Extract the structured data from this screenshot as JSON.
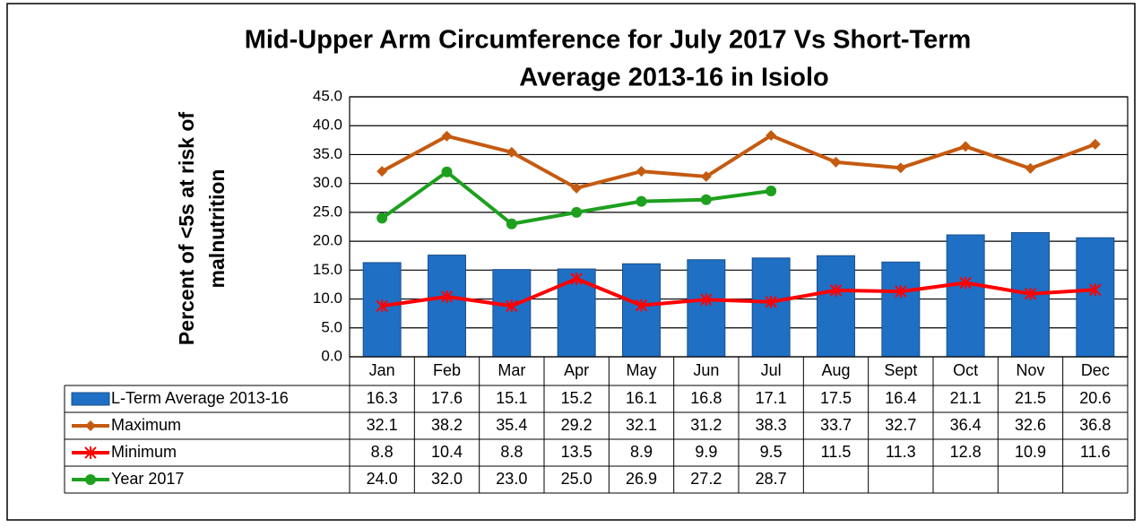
{
  "chart_data": {
    "type": "combo",
    "title": [
      "Mid-Upper Arm Circumference for July 2017 Vs Short-Term",
      "Average 2013-16  in Isiolo"
    ],
    "y_label": [
      "Percent of <5s at risk of",
      "malnutrition"
    ],
    "categories": [
      "Jan",
      "Feb",
      "Mar",
      "Apr",
      "May",
      "Jun",
      "Jul",
      "Aug",
      "Sept",
      "Oct",
      "Nov",
      "Dec"
    ],
    "ylim": [
      0,
      45
    ],
    "yticks": [
      {
        "value": 0,
        "label": "0.0"
      },
      {
        "value": 5,
        "label": "5.0"
      },
      {
        "value": 10,
        "label": "10.0"
      },
      {
        "value": 15,
        "label": "15.0"
      },
      {
        "value": 20,
        "label": "20.0"
      },
      {
        "value": 25,
        "label": "25.0"
      },
      {
        "value": 30,
        "label": "30.0"
      },
      {
        "value": 35,
        "label": "35.0"
      },
      {
        "value": 40,
        "label": "40.0"
      },
      {
        "value": 45,
        "label": "45.0"
      }
    ],
    "grid": true,
    "series": [
      {
        "name": "L-Term Average 2013-16",
        "type": "bar",
        "color": "#1f6fc5",
        "values": [
          16.3,
          17.6,
          15.1,
          15.2,
          16.1,
          16.8,
          17.1,
          17.5,
          16.4,
          21.1,
          21.5,
          20.6
        ],
        "value_labels": [
          "16.3",
          "17.6",
          "15.1",
          "15.2",
          "16.1",
          "16.8",
          "17.1",
          "17.5",
          "16.4",
          "21.1",
          "21.5",
          "20.6"
        ]
      },
      {
        "name": "Maximum",
        "type": "line",
        "marker": "diamond",
        "color": "#c55a11",
        "values": [
          32.1,
          38.2,
          35.4,
          29.2,
          32.1,
          31.2,
          38.3,
          33.7,
          32.7,
          36.4,
          32.6,
          36.8
        ],
        "value_labels": [
          "32.1",
          "38.2",
          "35.4",
          "29.2",
          "32.1",
          "31.2",
          "38.3",
          "33.7",
          "32.7",
          "36.4",
          "32.6",
          "36.8"
        ]
      },
      {
        "name": "Minimum",
        "type": "line",
        "marker": "star",
        "color": "#ff0000",
        "values": [
          8.8,
          10.4,
          8.8,
          13.5,
          8.9,
          9.9,
          9.5,
          11.5,
          11.3,
          12.8,
          10.9,
          11.6
        ],
        "value_labels": [
          "8.8",
          "10.4",
          "8.8",
          "13.5",
          "8.9",
          "9.9",
          "9.5",
          "11.5",
          "11.3",
          "12.8",
          "10.9",
          "11.6"
        ]
      },
      {
        "name": "Year 2017",
        "type": "line",
        "marker": "circle",
        "color": "#1ea01e",
        "values": [
          24,
          32,
          23,
          25,
          26.9,
          27.2,
          28.7,
          null,
          null,
          null,
          null,
          null
        ],
        "value_labels": [
          "24.0",
          "32.0",
          "23.0",
          "25.0",
          "26.9",
          "27.2",
          "28.7",
          null,
          null,
          null,
          null,
          null
        ]
      }
    ]
  }
}
